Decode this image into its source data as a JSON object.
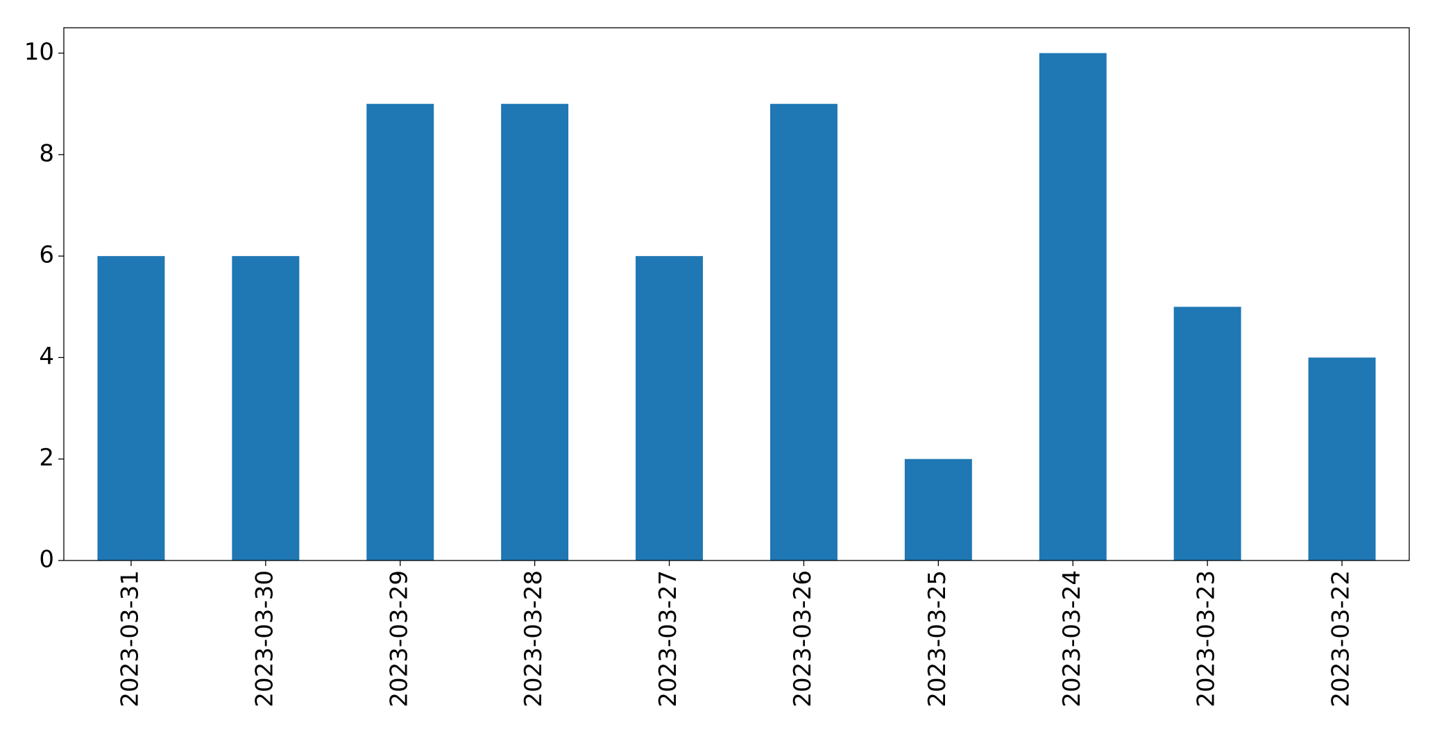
{
  "chart_data": {
    "type": "bar",
    "categories": [
      "2023-03-31",
      "2023-03-30",
      "2023-03-29",
      "2023-03-28",
      "2023-03-27",
      "2023-03-26",
      "2023-03-25",
      "2023-03-24",
      "2023-03-23",
      "2023-03-22"
    ],
    "values": [
      6,
      6,
      9,
      9,
      6,
      9,
      2,
      10,
      5,
      4
    ],
    "color": "#1f77b4",
    "ylim": [
      0,
      10.5
    ],
    "yticks": [
      0,
      2,
      4,
      6,
      8,
      10
    ],
    "grid": false
  }
}
